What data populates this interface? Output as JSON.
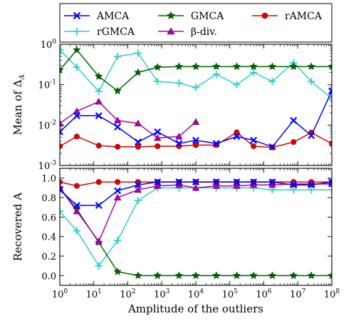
{
  "chart_data": {
    "type": "line",
    "xlabel": "Amplitude of the outliers",
    "xscale": "log",
    "xlim": [
      1,
      100000000
    ],
    "x_tick_labels": [
      "10^0",
      "10^1",
      "10^2",
      "10^3",
      "10^4",
      "10^5",
      "10^6",
      "10^7",
      "10^8"
    ],
    "legend": {
      "placement": "top",
      "columns": 3,
      "entries": [
        {
          "name": "AMCA",
          "color": "#0000ff",
          "marker": "x"
        },
        {
          "name": "GMCA",
          "color": "#006400",
          "marker": "star"
        },
        {
          "name": "rAMCA",
          "color": "#e00000",
          "marker": "circle"
        },
        {
          "name": "rGMCA",
          "color": "#33cccc",
          "marker": "plus"
        },
        {
          "name": "β-div.",
          "color": "#b000b0",
          "marker": "triangle"
        }
      ]
    },
    "grid": false,
    "panels": [
      {
        "ylabel": "Mean of Δ_A",
        "ylabel_main": "Mean of Δ",
        "ylabel_sub": "A",
        "yscale": "log",
        "ylim": [
          0.001,
          1
        ],
        "y_tick_labels": [
          "10^-3",
          "10^-2",
          "10^-1",
          "10^0"
        ],
        "x": [
          1,
          3.16,
          14,
          50,
          200,
          750,
          3200,
          10000,
          40000,
          160000,
          500000,
          1780000,
          7500000,
          25000000,
          100000000
        ],
        "series": [
          {
            "name": "AMCA",
            "values": [
              0.0068,
              0.017,
              0.017,
              0.009,
              0.0038,
              0.0068,
              0.0035,
              0.0042,
              0.0035,
              0.0052,
              0.0042,
              0.0029,
              0.013,
              0.0055,
              0.07
            ]
          },
          {
            "name": "GMCA",
            "values": [
              0.23,
              0.72,
              0.16,
              0.07,
              0.2,
              0.27,
              0.28,
              0.28,
              0.28,
              0.28,
              0.28,
              0.28,
              0.28,
              0.28,
              0.28
            ]
          },
          {
            "name": "rAMCA",
            "values": [
              0.003,
              0.0052,
              0.0031,
              0.0029,
              0.0029,
              0.003,
              0.003,
              0.0032,
              0.0032,
              0.0066,
              0.003,
              0.0028,
              0.0038,
              0.0065,
              0.0035
            ]
          },
          {
            "name": "rGMCA",
            "values": [
              0.72,
              0.27,
              0.068,
              0.5,
              0.6,
              0.12,
              0.11,
              0.085,
              0.18,
              0.1,
              0.2,
              0.12,
              0.35,
              0.12,
              0.045
            ]
          },
          {
            "name": "β-div.",
            "x": [
              1,
              3.16,
              14,
              50,
              200,
              750,
              3200,
              10000
            ],
            "values": [
              0.011,
              0.022,
              0.038,
              0.013,
              0.011,
              0.0048,
              0.0052,
              0.012
            ]
          }
        ]
      },
      {
        "ylabel": "Recovered A",
        "yscale": "linear",
        "ylim": [
          -0.1,
          1.1
        ],
        "y_tick_labels": [
          "0.0",
          "0.2",
          "0.4",
          "0.6",
          "0.8",
          "1.0"
        ],
        "x": [
          1,
          3.16,
          14,
          50,
          200,
          750,
          3200,
          10000,
          40000,
          160000,
          500000,
          1780000,
          7500000,
          25000000,
          100000000
        ],
        "series": [
          {
            "name": "AMCA",
            "values": [
              0.88,
              0.72,
              0.72,
              0.87,
              0.93,
              0.96,
              0.96,
              0.96,
              0.96,
              0.96,
              0.96,
              0.96,
              0.93,
              0.93,
              0.96
            ]
          },
          {
            "name": "GMCA",
            "values": [
              0.9,
              0.68,
              0.34,
              0.04,
              0.0,
              0.0,
              0.0,
              0.0,
              0.0,
              0.0,
              0.0,
              0.0,
              0.0,
              0.0,
              0.0
            ]
          },
          {
            "name": "rAMCA",
            "values": [
              0.96,
              0.92,
              0.96,
              0.96,
              0.96,
              0.96,
              0.96,
              0.96,
              0.96,
              0.96,
              0.96,
              0.96,
              0.96,
              0.96,
              0.96
            ]
          },
          {
            "name": "rGMCA",
            "values": [
              0.66,
              0.46,
              0.1,
              0.36,
              0.77,
              0.9,
              0.9,
              0.9,
              0.9,
              0.9,
              0.9,
              0.88,
              0.88,
              0.88,
              0.88
            ]
          },
          {
            "name": "β-div.",
            "x": [
              1,
              3.16,
              14,
              50,
              200,
              750,
              3200,
              10000,
              40000,
              160000,
              500000,
              1780000,
              7500000,
              25000000,
              100000000
            ],
            "values": [
              0.9,
              0.66,
              0.35,
              0.8,
              0.88,
              0.92,
              0.93,
              0.9,
              0.92,
              0.92,
              0.93,
              0.93,
              0.94,
              0.94,
              0.94
            ]
          }
        ]
      }
    ]
  }
}
